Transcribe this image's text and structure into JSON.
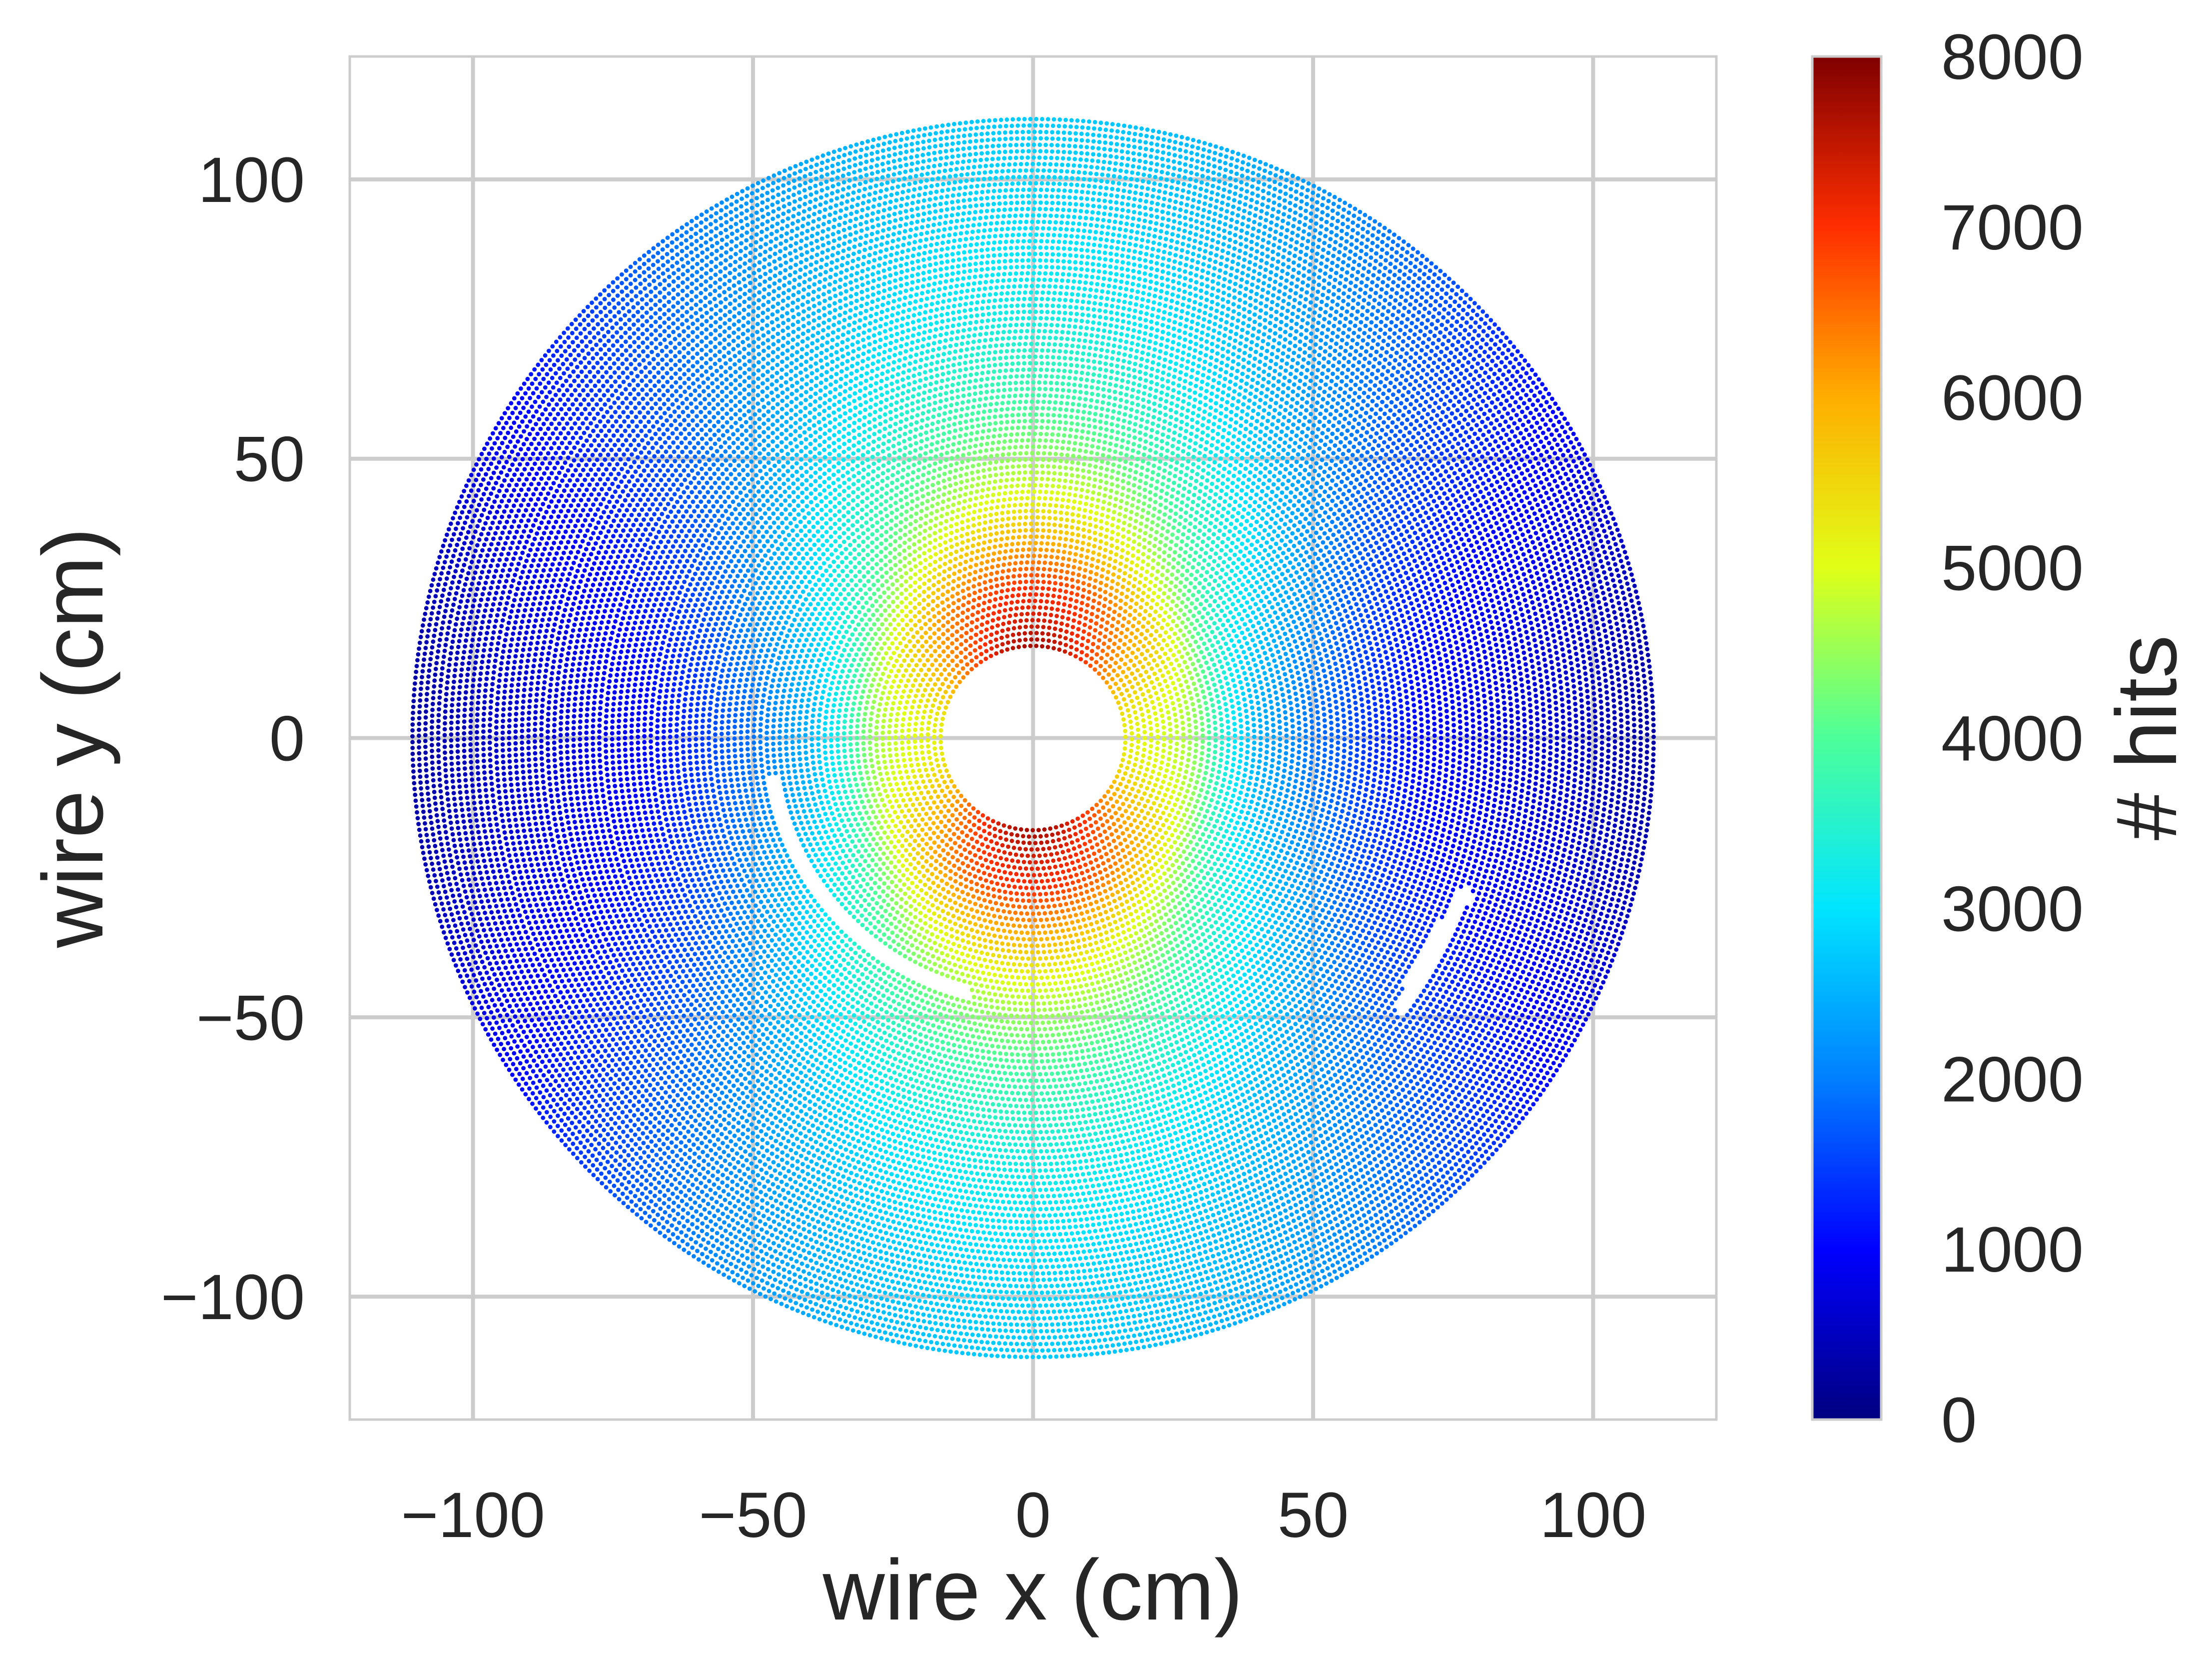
{
  "chart_data": {
    "type": "scatter",
    "title": "",
    "xlabel": "wire x (cm)",
    "ylabel": "wire y (cm)",
    "xlim": [
      -122,
      122
    ],
    "ylim": [
      -122,
      122
    ],
    "xticks": [
      -100,
      -50,
      0,
      50,
      100
    ],
    "yticks": [
      -100,
      -50,
      0,
      50,
      100
    ],
    "xtick_labels": [
      "−100",
      "−50",
      "0",
      "50",
      "100"
    ],
    "ytick_labels": [
      "−100",
      "−50",
      "0",
      "50",
      "100"
    ],
    "grid": true,
    "colormap": "jet",
    "colorbar": {
      "label": "# hits",
      "range": [
        0,
        8000
      ],
      "ticks": [
        0,
        1000,
        2000,
        3000,
        4000,
        5000,
        6000,
        7000,
        8000
      ],
      "tick_labels": [
        "0",
        "1000",
        "2000",
        "3000",
        "4000",
        "5000",
        "6000",
        "7000",
        "8000"
      ],
      "colors": [
        "#00007f",
        "#0000ff",
        "#007fff",
        "#00e5ff",
        "#4cff9a",
        "#e0ff17",
        "#ffae00",
        "#ff2e00",
        "#7f0000"
      ]
    },
    "geometry": {
      "inner_radius_cm": 16.5,
      "outer_radius_cm": 111,
      "ring_spacing_cm": 1.15,
      "wire_spacing_cm": 1.05
    },
    "hit_profile": {
      "radius_cm": [
        16.5,
        22,
        27,
        30,
        35,
        40,
        45,
        50,
        55,
        60,
        65,
        70,
        75,
        80,
        85,
        90,
        95,
        100,
        105,
        111
      ],
      "hits_at_azimuth_90deg": [
        7700,
        7300,
        7000,
        6600,
        6000,
        5400,
        4900,
        4500,
        4200,
        3900,
        3700,
        3500,
        3300,
        3200,
        3100,
        3000,
        2900,
        2850,
        2800,
        2750
      ],
      "hits_at_azimuth_0deg": [
        5200,
        5000,
        4700,
        4300,
        3200,
        2500,
        2200,
        1900,
        1700,
        1400,
        1200,
        1000,
        900,
        800,
        700,
        650,
        600,
        500,
        400,
        300
      ]
    },
    "gaps": [
      {
        "shape": "arc",
        "center_x": 0,
        "center_y": 0,
        "radius_cm": 47,
        "angle_from_deg": 188,
        "angle_to_deg": 256
      },
      {
        "shape": "segment",
        "from_x": 66,
        "from_y": -48,
        "to_x": 77,
        "to_y": -28
      }
    ]
  }
}
